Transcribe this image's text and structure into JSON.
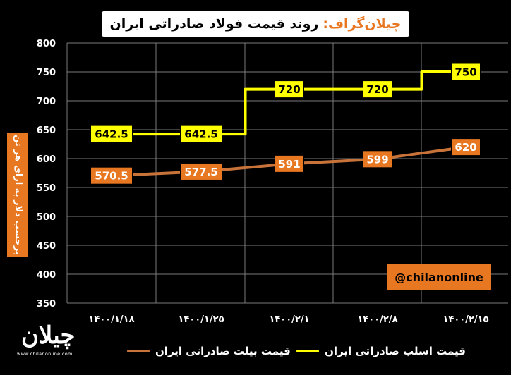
{
  "title": {
    "brand": "چیلان‌گراف:",
    "text": "روند قیمت فولاد صادراتی ایران"
  },
  "handle": "@chilanonline",
  "logo": {
    "name": "چیلان",
    "url": "www.chilanonline.com"
  },
  "colors": {
    "background": "#000000",
    "series1": "#ffff00",
    "series2": "#c8733a",
    "accent": "#e87722",
    "grid": "#7a7a7a"
  },
  "chart_data": {
    "type": "line",
    "x": [
      "۱۴۰۰/۱/۱۸",
      "۱۴۰۰/۱/۲۵",
      "۱۴۰۰/۲/۱",
      "۱۴۰۰/۲/۸",
      "۱۴۰۰/۲/۱۵"
    ],
    "ylabel": "برحسب دلار به ازای هر تن",
    "ylim": [
      350,
      800
    ],
    "yticks": [
      "350",
      "400",
      "450",
      "500",
      "550",
      "600",
      "650",
      "700",
      "750",
      "800"
    ],
    "grid": true,
    "legend": "bottom",
    "series": [
      {
        "name": "قیمت اسلب صادراتی ایران",
        "values": [
          642.5,
          642.5,
          720,
          720,
          750
        ],
        "labels": [
          "642.5",
          "642.5",
          "720",
          "720",
          "750"
        ],
        "line_style": "step"
      },
      {
        "name": "قیمت بیلت صادراتی ایران",
        "values": [
          570.5,
          577.5,
          591,
          599,
          620
        ],
        "labels": [
          "570.5",
          "577.5",
          "591",
          "599",
          "620"
        ],
        "line_style": "straight"
      }
    ]
  }
}
